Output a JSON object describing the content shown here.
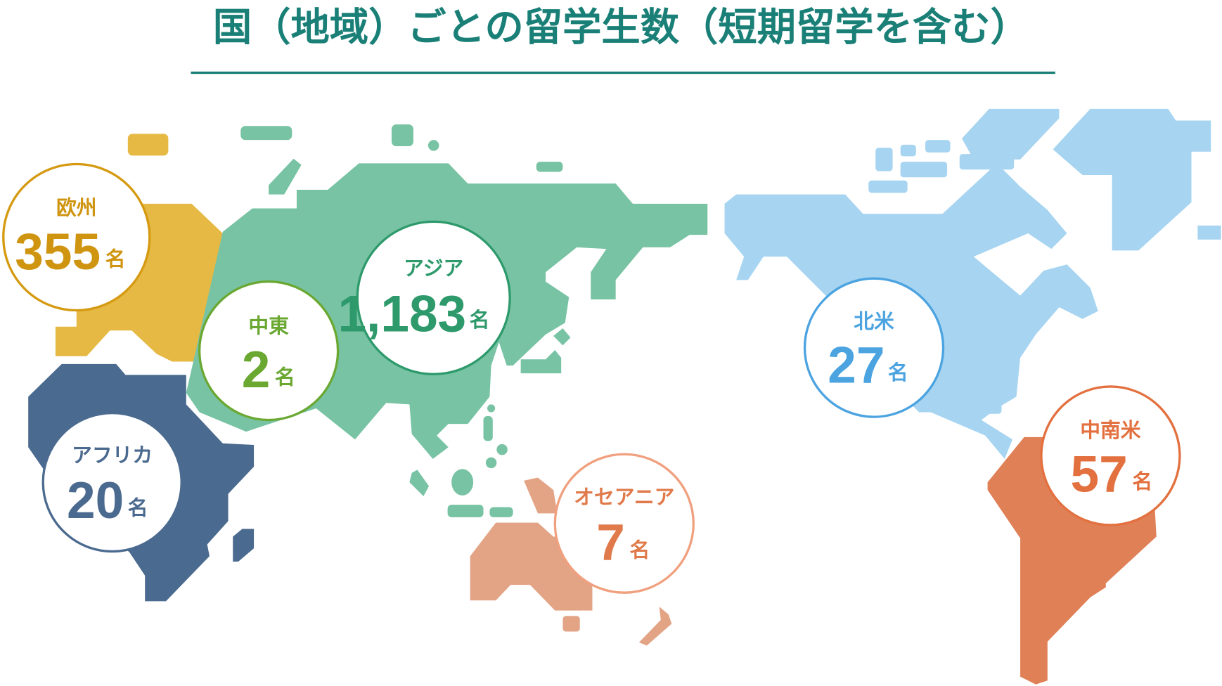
{
  "title": "国（地域）ごとの留学生数（短期留学を含む）",
  "colors": {
    "title": "#1a8077",
    "europe": "#e6b944",
    "africa": "#4b6a8f",
    "asia": "#78c3a4",
    "oceania": "#e3a385",
    "north_america": "#a6d4f1",
    "south_america": "#e08057"
  },
  "regions": {
    "europe": {
      "name": "欧州",
      "count": "355",
      "unit": "名"
    },
    "middle_east": {
      "name": "中東",
      "count": "2",
      "unit": "名"
    },
    "asia": {
      "name": "アジア",
      "count": "1,183",
      "unit": "名"
    },
    "africa": {
      "name": "アフリカ",
      "count": "20",
      "unit": "名"
    },
    "oceania": {
      "name": "オセアニア",
      "count": "7",
      "unit": "名"
    },
    "north_america": {
      "name": "北米",
      "count": "27",
      "unit": "名"
    },
    "south_america": {
      "name": "中南米",
      "count": "57",
      "unit": "名"
    }
  }
}
